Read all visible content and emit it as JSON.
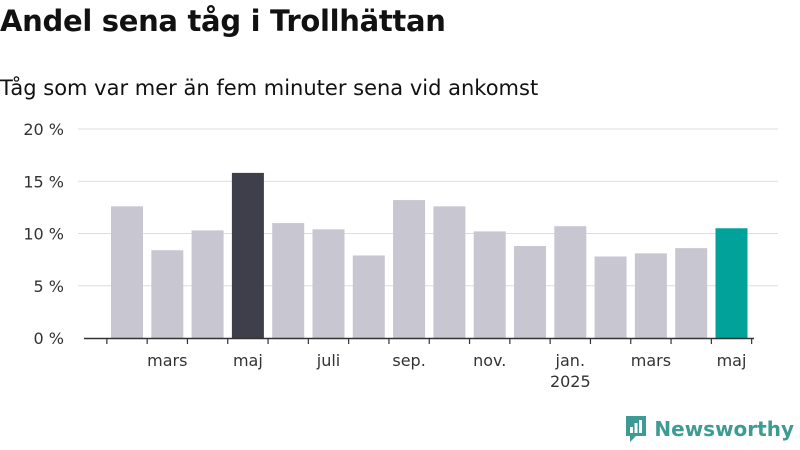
{
  "title": "Andel sena tåg i Trollhättan",
  "subtitle": "Tåg som var mer än fem minuter sena vid ankomst",
  "brand": {
    "name": "Newsworthy",
    "icon": "newsworthy-logo-icon",
    "color": "#3e9b94"
  },
  "colors": {
    "bar": "#c8c7d1",
    "highlight": "#3f3e4b",
    "latest": "#00a29a",
    "grid": "#dddddd",
    "axis": "#333333"
  },
  "chart_data": {
    "type": "bar",
    "title": "Andel sena tåg i Trollhättan",
    "subtitle": "Tåg som var mer än fem minuter sena vid ankomst",
    "xlabel": "",
    "ylabel": "",
    "ylim": [
      0,
      20
    ],
    "yticks": [
      0,
      5,
      10,
      15,
      20
    ],
    "ytick_labels": [
      "0 %",
      "5 %",
      "10 %",
      "15 %",
      "20 %"
    ],
    "grid": true,
    "legend": "none",
    "categories": [
      "2024-02",
      "2024-03",
      "2024-04",
      "2024-05",
      "2024-06",
      "2024-07",
      "2024-08",
      "2024-09",
      "2024-10",
      "2024-11",
      "2024-12",
      "2025-01",
      "2025-02",
      "2025-03",
      "2025-04",
      "2025-05"
    ],
    "values": [
      12.6,
      8.4,
      10.3,
      15.8,
      11.0,
      10.4,
      7.9,
      13.2,
      12.6,
      10.2,
      8.8,
      10.7,
      7.8,
      8.1,
      8.6,
      10.5
    ],
    "highlight": {
      "max": "2024-05",
      "latest": "2025-05"
    },
    "xtick_labels": [
      {
        "category": "2024-03",
        "label": "mars",
        "sublabel": ""
      },
      {
        "category": "2024-05",
        "label": "maj",
        "sublabel": ""
      },
      {
        "category": "2024-07",
        "label": "juli",
        "sublabel": ""
      },
      {
        "category": "2024-09",
        "label": "sep.",
        "sublabel": ""
      },
      {
        "category": "2024-11",
        "label": "nov.",
        "sublabel": ""
      },
      {
        "category": "2025-01",
        "label": "jan.",
        "sublabel": "2025"
      },
      {
        "category": "2025-03",
        "label": "mars",
        "sublabel": ""
      },
      {
        "category": "2025-05",
        "label": "maj",
        "sublabel": ""
      }
    ]
  }
}
